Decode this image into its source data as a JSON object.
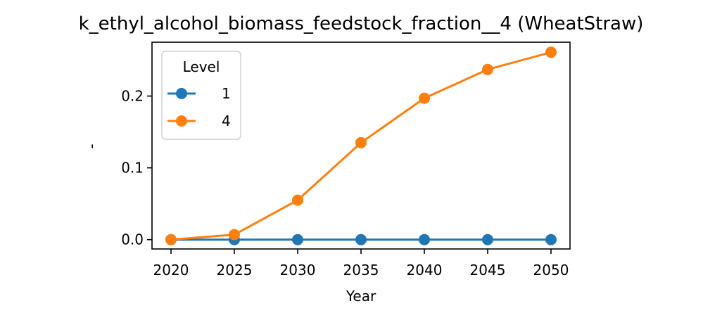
{
  "chart_data": {
    "type": "line",
    "title": "k_ethyl_alcohol_biomass_feedstock_fraction__4 (WheatStraw)",
    "xlabel": "Year",
    "ylabel": "-",
    "x": [
      2020,
      2025,
      2030,
      2035,
      2040,
      2045,
      2050
    ],
    "xticks": [
      "2020",
      "2025",
      "2030",
      "2035",
      "2040",
      "2045",
      "2050"
    ],
    "yticks": [
      "0.0",
      "0.1",
      "0.2"
    ],
    "ytick_values": [
      0.0,
      0.1,
      0.2
    ],
    "xlim": [
      2018.5,
      2051.5
    ],
    "ylim": [
      -0.013,
      0.275
    ],
    "grid": false,
    "legend": {
      "title": "Level",
      "placement": "top-left"
    },
    "series": [
      {
        "name": "1",
        "color": "#1f77b4",
        "values": [
          0.0,
          0.0,
          0.0,
          0.0,
          0.0,
          0.0,
          0.0
        ]
      },
      {
        "name": "4",
        "color": "#ff7f0e",
        "values": [
          0.0,
          0.007,
          0.055,
          0.135,
          0.197,
          0.237,
          0.261
        ]
      }
    ]
  }
}
